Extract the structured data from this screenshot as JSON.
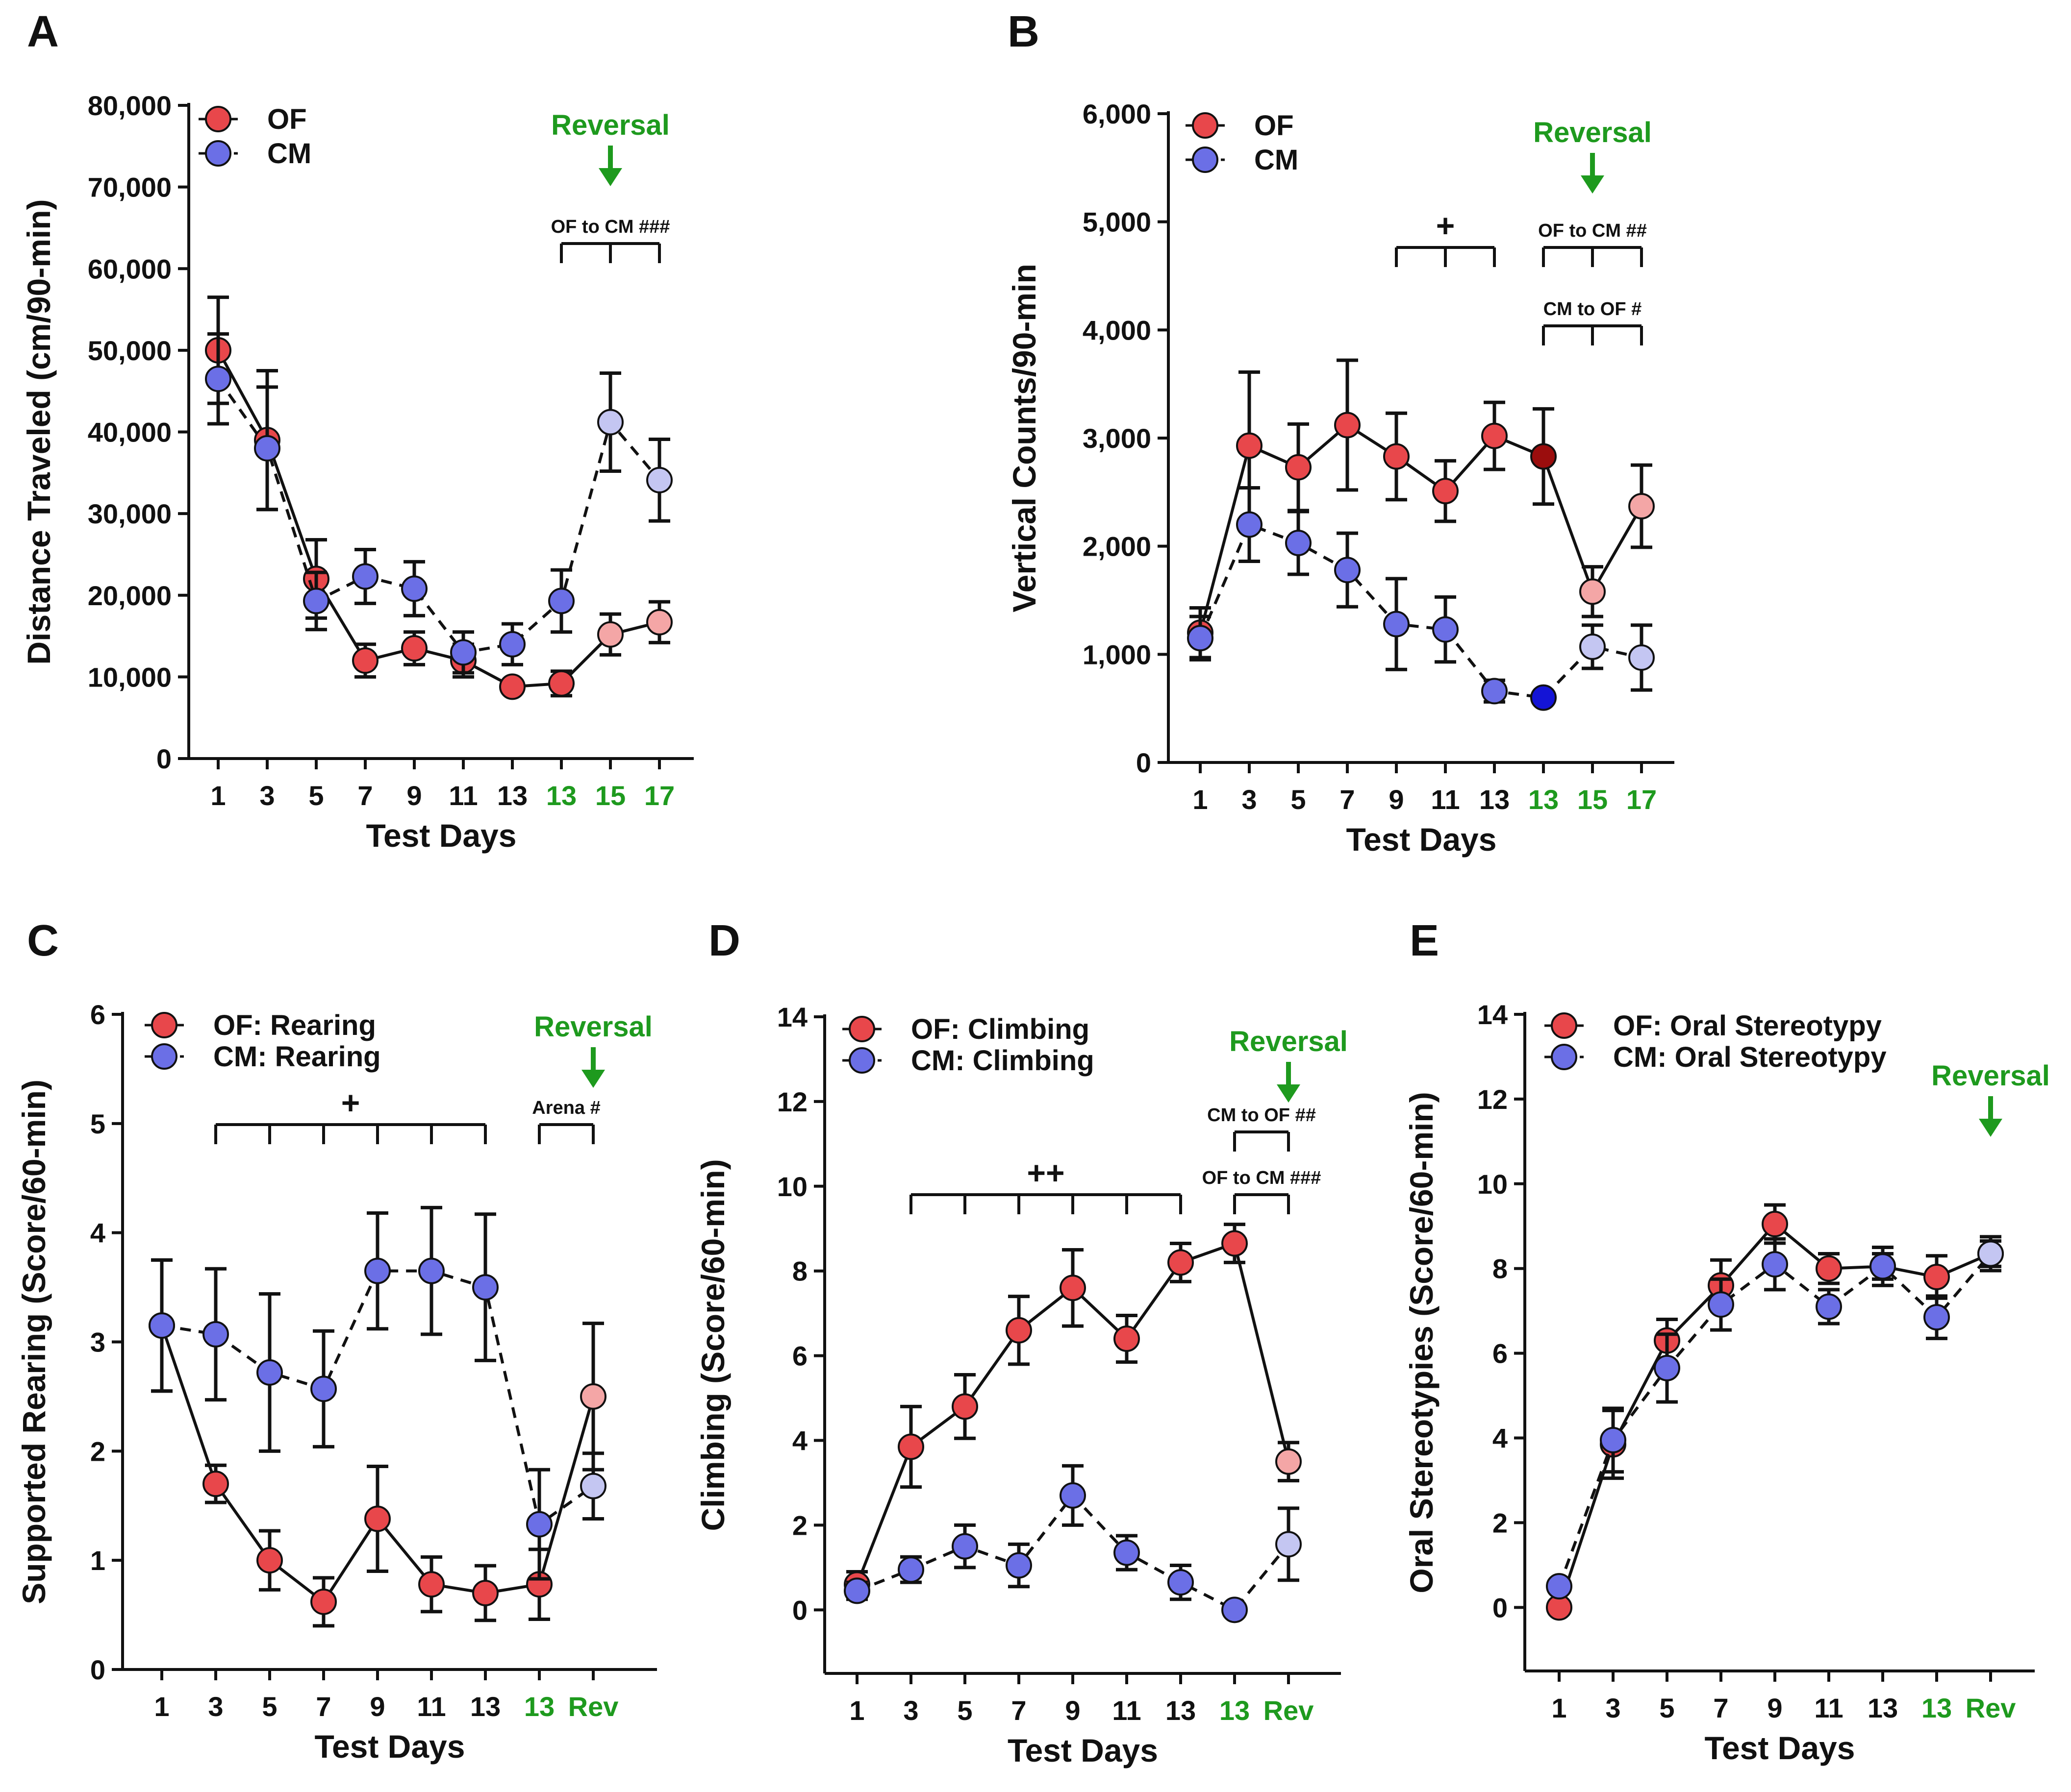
{
  "colors": {
    "of": "#e8474b",
    "cm": "#6b6fe6",
    "of_light": "#f4a6a6",
    "cm_light": "#c4c6f2",
    "of_dark": "#9b0d0d",
    "cm_dark": "#1414d6",
    "reversal": "#1e9a1e",
    "ink": "#111111"
  },
  "chart_data": [
    {
      "panel": "A",
      "type": "line",
      "xlabel": "Test Days",
      "ylabel": "Distance Traveled (cm/90-min)",
      "ylim": [
        0,
        80000
      ],
      "yticks": [
        "0",
        "10,000",
        "20,000",
        "30,000",
        "40,000",
        "50,000",
        "60,000",
        "70,000",
        "80,000"
      ],
      "ytick_values": [
        0,
        10000,
        20000,
        30000,
        40000,
        50000,
        60000,
        70000,
        80000
      ],
      "categories": [
        "1",
        "3",
        "5",
        "7",
        "9",
        "11",
        "13",
        "13",
        "15",
        "17"
      ],
      "category_colors": [
        "ink",
        "ink",
        "ink",
        "ink",
        "ink",
        "ink",
        "ink",
        "reversal",
        "reversal",
        "reversal"
      ],
      "series": [
        {
          "name": "OF",
          "values": [
            50000,
            39000,
            22000,
            12000,
            13500,
            12000,
            8800,
            9200,
            15200,
            16700
          ],
          "errors": [
            6500,
            8500,
            4800,
            2000,
            2000,
            2000,
            500,
            1500,
            2500,
            2500
          ],
          "point_colors": [
            "of",
            "of",
            "of",
            "of",
            "of",
            "of",
            "of",
            "of",
            "of_light",
            "of_light"
          ]
        },
        {
          "name": "CM",
          "values": [
            46500,
            38000,
            19300,
            22300,
            20800,
            13000,
            14000,
            19300,
            41200,
            34100
          ],
          "errors": [
            5500,
            7500,
            3500,
            3300,
            3300,
            2500,
            2500,
            3800,
            6000,
            5000
          ],
          "point_colors": [
            "cm",
            "cm",
            "cm",
            "cm",
            "cm",
            "cm",
            "cm",
            "cm",
            "cm_light",
            "cm_light"
          ]
        }
      ],
      "legend": [
        "OF",
        "CM"
      ],
      "reversal": {
        "label": "Reversal",
        "after_index": 8
      },
      "annotations": [
        {
          "text": "OF to CM ###",
          "from": 7,
          "to": 9
        }
      ]
    },
    {
      "panel": "B",
      "type": "line",
      "xlabel": "Test Days",
      "ylabel": "Vertical Counts/90-min",
      "ylim": [
        0,
        6000
      ],
      "yticks": [
        "0",
        "1,000",
        "2,000",
        "3,000",
        "4,000",
        "5,000",
        "6,000"
      ],
      "ytick_values": [
        0,
        1000,
        2000,
        3000,
        4000,
        5000,
        6000
      ],
      "categories": [
        "1",
        "3",
        "5",
        "7",
        "9",
        "11",
        "13",
        "13",
        "15",
        "17"
      ],
      "category_colors": [
        "ink",
        "ink",
        "ink",
        "ink",
        "ink",
        "ink",
        "ink",
        "reversal",
        "reversal",
        "reversal"
      ],
      "series": [
        {
          "name": "OF",
          "values": [
            1200,
            2930,
            2730,
            3120,
            2830,
            2510,
            3020,
            2830,
            1580,
            2370
          ],
          "errors": [
            230,
            680,
            400,
            600,
            400,
            280,
            310,
            440,
            230,
            380
          ],
          "point_colors": [
            "of",
            "of",
            "of",
            "of",
            "of",
            "of",
            "of",
            "of_dark",
            "of_light",
            "of_light"
          ]
        },
        {
          "name": "CM",
          "values": [
            1150,
            2200,
            2030,
            1780,
            1280,
            1230,
            660,
            600,
            1070,
            970
          ],
          "errors": [
            200,
            340,
            290,
            340,
            420,
            300,
            100,
            50,
            200,
            300
          ],
          "point_colors": [
            "cm",
            "cm",
            "cm",
            "cm",
            "cm",
            "cm",
            "cm",
            "cm_dark",
            "cm_light",
            "cm_light"
          ]
        }
      ],
      "legend": [
        "OF",
        "CM"
      ],
      "reversal": {
        "label": "Reversal",
        "after_index": 8
      },
      "annotations": [
        {
          "text": "+",
          "from": 4,
          "to": 6
        },
        {
          "text": "OF to CM ##",
          "from": 7,
          "to": 9
        },
        {
          "text": "CM to OF #",
          "from": 7,
          "to": 9
        }
      ]
    },
    {
      "panel": "C",
      "type": "line",
      "xlabel": "Test Days",
      "ylabel": "Supported Rearing (Score/60-min)",
      "ylim": [
        0,
        6
      ],
      "yticks": [
        "0",
        "1",
        "2",
        "3",
        "4",
        "5",
        "6"
      ],
      "ytick_values": [
        0,
        1,
        2,
        3,
        4,
        5,
        6
      ],
      "categories": [
        "1",
        "3",
        "5",
        "7",
        "9",
        "11",
        "13",
        "13",
        "Rev"
      ],
      "category_colors": [
        "ink",
        "ink",
        "ink",
        "ink",
        "ink",
        "ink",
        "ink",
        "reversal",
        "reversal"
      ],
      "series": [
        {
          "name": "OF: Rearing",
          "values": [
            3.15,
            1.7,
            1.0,
            0.62,
            1.38,
            0.78,
            0.7,
            0.78,
            2.5
          ],
          "errors": [
            0.6,
            0.17,
            0.27,
            0.22,
            0.48,
            0.25,
            0.25,
            0.32,
            0.67
          ],
          "point_colors": [
            "of",
            "of",
            "of",
            "of",
            "of",
            "of",
            "of",
            "of",
            "of_light"
          ]
        },
        {
          "name": "CM: Rearing",
          "values": [
            3.15,
            3.07,
            2.72,
            2.57,
            3.65,
            3.65,
            3.5,
            1.33,
            1.68
          ],
          "errors": [
            0.6,
            0.6,
            0.72,
            0.53,
            0.53,
            0.58,
            0.67,
            0.5,
            0.3
          ],
          "point_colors": [
            "cm",
            "cm",
            "cm",
            "cm",
            "cm",
            "cm",
            "cm",
            "cm",
            "cm_light"
          ]
        }
      ],
      "legend": [
        "OF: Rearing",
        "CM: Rearing"
      ],
      "reversal": {
        "label": "Reversal",
        "after_index": 8
      },
      "annotations": [
        {
          "text": "+",
          "from": 1,
          "to": 6
        },
        {
          "text": "Arena #",
          "from": 7,
          "to": 8
        }
      ]
    },
    {
      "panel": "D",
      "type": "line",
      "xlabel": "Test Days",
      "ylabel": "Climbing (Score/60-min)",
      "ylim": [
        -1.5,
        14
      ],
      "yticks": [
        "0",
        "2",
        "4",
        "6",
        "8",
        "10",
        "12",
        "14"
      ],
      "ytick_values": [
        0,
        2,
        4,
        6,
        8,
        10,
        12,
        14
      ],
      "categories": [
        "1",
        "3",
        "5",
        "7",
        "9",
        "11",
        "13",
        "13",
        "Rev"
      ],
      "category_colors": [
        "ink",
        "ink",
        "ink",
        "ink",
        "ink",
        "ink",
        "ink",
        "reversal",
        "reversal"
      ],
      "series": [
        {
          "name": "OF: Climbing",
          "values": [
            0.6,
            3.85,
            4.8,
            6.6,
            7.6,
            6.4,
            8.2,
            8.65,
            3.5
          ],
          "errors": [
            0.3,
            0.95,
            0.75,
            0.8,
            0.9,
            0.55,
            0.45,
            0.45,
            0.45
          ],
          "point_colors": [
            "of",
            "of",
            "of",
            "of",
            "of",
            "of",
            "of",
            "of",
            "of_light"
          ]
        },
        {
          "name": "CM: Climbing",
          "values": [
            0.45,
            0.95,
            1.5,
            1.05,
            2.7,
            1.35,
            0.65,
            0.0,
            1.55
          ],
          "errors": [
            0.2,
            0.3,
            0.5,
            0.5,
            0.7,
            0.4,
            0.4,
            0.0,
            0.85
          ],
          "point_colors": [
            "cm",
            "cm",
            "cm",
            "cm",
            "cm",
            "cm",
            "cm",
            "cm",
            "cm_light"
          ]
        }
      ],
      "legend": [
        "OF: Climbing",
        "CM: Climbing"
      ],
      "reversal": {
        "label": "Reversal",
        "after_index": 8
      },
      "annotations": [
        {
          "text": "++",
          "from": 1,
          "to": 6
        },
        {
          "text": "CM to OF ##",
          "from": 7,
          "to": 8
        },
        {
          "text": "OF to CM ###",
          "from": 7,
          "to": 8
        }
      ]
    },
    {
      "panel": "E",
      "type": "line",
      "xlabel": "Test Days",
      "ylabel": "Oral Stereotypies (Score/60-min)",
      "ylim": [
        -1.5,
        14
      ],
      "yticks": [
        "0",
        "2",
        "4",
        "6",
        "8",
        "10",
        "12",
        "14"
      ],
      "ytick_values": [
        0,
        2,
        4,
        6,
        8,
        10,
        12,
        14
      ],
      "categories": [
        "1",
        "3",
        "5",
        "7",
        "9",
        "11",
        "13",
        "13",
        "Rev"
      ],
      "category_colors": [
        "ink",
        "ink",
        "ink",
        "ink",
        "ink",
        "ink",
        "ink",
        "reversal",
        "reversal"
      ],
      "series": [
        {
          "name": "OF: Oral Stereotypy",
          "values": [
            0.0,
            3.85,
            6.3,
            7.6,
            9.05,
            8.0,
            8.05,
            7.8,
            8.35
          ],
          "errors": [
            0.0,
            0.8,
            0.5,
            0.6,
            0.45,
            0.35,
            0.45,
            0.5,
            0.4
          ],
          "point_colors": [
            "of",
            "of",
            "of",
            "of",
            "of",
            "of",
            "of",
            "of",
            "of_light"
          ]
        },
        {
          "name": "CM: Oral Stereotypy",
          "values": [
            0.5,
            3.95,
            5.65,
            7.15,
            8.1,
            7.1,
            8.05,
            6.85,
            8.35
          ],
          "errors": [
            0.1,
            0.75,
            0.8,
            0.6,
            0.6,
            0.4,
            0.3,
            0.5,
            0.3
          ],
          "point_colors": [
            "cm",
            "cm",
            "cm",
            "cm",
            "cm",
            "cm",
            "cm",
            "cm",
            "cm_light"
          ]
        }
      ],
      "legend": [
        "OF: Oral Stereotypy",
        "CM: Oral Stereotypy"
      ],
      "reversal": {
        "label": "Reversal",
        "after_index": 8
      },
      "annotations": []
    }
  ]
}
